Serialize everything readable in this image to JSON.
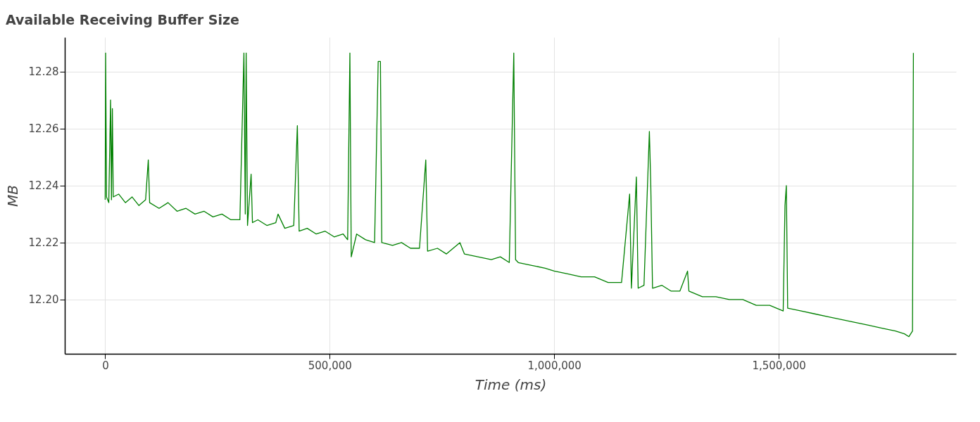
{
  "chart_data": {
    "type": "line",
    "title": "Available Receiving Buffer Size",
    "xlabel": "Time (ms)",
    "ylabel": "MB",
    "x": [
      0,
      1000,
      3000,
      8000,
      12000,
      14000,
      16000,
      18000,
      30000,
      45000,
      60000,
      75000,
      90000,
      96000,
      99000,
      120000,
      140000,
      160000,
      180000,
      200000,
      220000,
      240000,
      260000,
      280000,
      300000,
      309000,
      312000,
      314000,
      317000,
      325000,
      328000,
      340000,
      360000,
      380000,
      385000,
      400000,
      420000,
      428000,
      432000,
      450000,
      470000,
      490000,
      510000,
      530000,
      540000,
      545000,
      548000,
      560000,
      580000,
      600000,
      608000,
      613000,
      616000,
      640000,
      660000,
      680000,
      700000,
      714000,
      718000,
      740000,
      760000,
      790000,
      800000,
      830000,
      860000,
      880000,
      900000,
      910000,
      914000,
      920000,
      950000,
      980000,
      1000000,
      1030000,
      1060000,
      1090000,
      1120000,
      1150000,
      1168000,
      1172000,
      1183000,
      1187000,
      1200000,
      1212000,
      1215000,
      1219000,
      1240000,
      1260000,
      1280000,
      1297000,
      1300000,
      1330000,
      1360000,
      1390000,
      1420000,
      1450000,
      1480000,
      1510000,
      1514000,
      1517000,
      1520000,
      1550000,
      1580000,
      1610000,
      1640000,
      1670000,
      1700000,
      1730000,
      1760000,
      1780000,
      1790000,
      1798000,
      1800000
    ],
    "series": [
      {
        "color": "#008000",
        "values": [
          12.235,
          12.2865,
          12.236,
          12.234,
          12.27,
          12.235,
          12.267,
          12.236,
          12.237,
          12.234,
          12.236,
          12.233,
          12.235,
          12.249,
          12.234,
          12.232,
          12.234,
          12.231,
          12.232,
          12.23,
          12.231,
          12.229,
          12.23,
          12.228,
          12.228,
          12.2865,
          12.23,
          12.2865,
          12.226,
          12.244,
          12.227,
          12.228,
          12.226,
          12.227,
          12.23,
          12.225,
          12.226,
          12.261,
          12.224,
          12.225,
          12.223,
          12.224,
          12.222,
          12.223,
          12.221,
          12.2865,
          12.215,
          12.223,
          12.221,
          12.22,
          12.2835,
          12.2835,
          12.22,
          12.219,
          12.22,
          12.218,
          12.218,
          12.249,
          12.217,
          12.218,
          12.216,
          12.22,
          12.216,
          12.215,
          12.214,
          12.215,
          12.213,
          12.2865,
          12.214,
          12.213,
          12.212,
          12.211,
          12.21,
          12.209,
          12.208,
          12.208,
          12.206,
          12.206,
          12.237,
          12.204,
          12.243,
          12.204,
          12.205,
          12.259,
          12.241,
          12.204,
          12.205,
          12.203,
          12.203,
          12.21,
          12.203,
          12.201,
          12.201,
          12.2,
          12.2,
          12.198,
          12.198,
          12.196,
          12.233,
          12.24,
          12.197,
          12.196,
          12.195,
          12.194,
          12.193,
          12.192,
          12.191,
          12.19,
          12.189,
          12.188,
          12.187,
          12.189,
          12.2865
        ]
      }
    ],
    "xlim": [
      -90000,
      1895000
    ],
    "xticks": [
      0,
      {
        "value": 500000,
        "label": "500,000"
      },
      {
        "value": 1000000,
        "label": "1,000,000"
      },
      {
        "value": 1500000,
        "label": "1,500,000"
      }
    ],
    "ylim": [
      12.181,
      12.292
    ],
    "yticks": [
      {
        "value": 12.2,
        "label": "12.20"
      },
      {
        "value": 12.22,
        "label": "12.22"
      },
      {
        "value": 12.24,
        "label": "12.24"
      },
      {
        "value": 12.26,
        "label": "12.26"
      },
      {
        "value": 12.28,
        "label": "12.28"
      }
    ],
    "grid": true,
    "line_style": "solid",
    "marker": "none"
  }
}
